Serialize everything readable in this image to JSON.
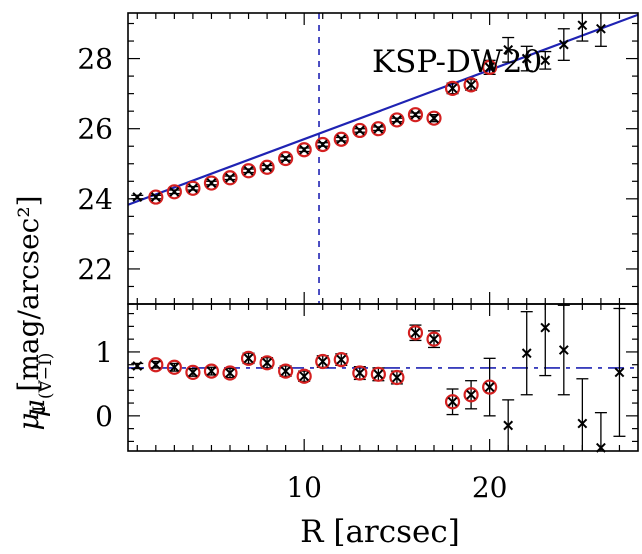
{
  "chart_data": [
    {
      "panel": "top",
      "type": "scatter",
      "title": "KSP-DW20",
      "ylabel_main": "[mag/arcsec²]",
      "ylabel_sym": "μ",
      "ylabel_sub": "I",
      "xlim": [
        0.5,
        28.0
      ],
      "ylim": [
        29.3,
        21.0
      ],
      "y_inverted": true,
      "yticks": [
        22,
        24,
        26,
        28
      ],
      "ytick_labels": [
        "22",
        "24",
        "26",
        "28"
      ],
      "x": [
        1,
        2,
        3,
        4,
        5,
        6,
        7,
        8,
        9,
        10,
        11,
        12,
        13,
        14,
        15,
        16,
        17,
        18,
        19,
        20,
        21,
        22,
        23,
        24,
        25,
        26
      ],
      "y": [
        24.05,
        24.05,
        24.2,
        24.3,
        24.45,
        24.6,
        24.8,
        24.9,
        25.15,
        25.4,
        25.55,
        25.7,
        25.95,
        26.0,
        26.25,
        26.4,
        26.3,
        27.15,
        27.25,
        27.75,
        28.25,
        28.0,
        27.95,
        28.4,
        28.95,
        28.85
      ],
      "yerr": [
        0.05,
        0.05,
        0.05,
        0.05,
        0.05,
        0.05,
        0.05,
        0.05,
        0.05,
        0.05,
        0.05,
        0.05,
        0.05,
        0.05,
        0.05,
        0.05,
        0.1,
        0.15,
        0.15,
        0.2,
        0.35,
        0.35,
        0.25,
        0.45,
        0.45,
        0.5
      ],
      "circled": [
        false,
        true,
        true,
        true,
        true,
        true,
        true,
        true,
        true,
        true,
        true,
        true,
        true,
        true,
        true,
        true,
        true,
        true,
        true,
        true,
        false,
        false,
        false,
        false,
        false,
        false
      ],
      "fit_line": {
        "x": [
          0.5,
          28.0
        ],
        "y": [
          23.83,
          29.25
        ]
      },
      "vline_x": 10.8
    },
    {
      "panel": "bottom",
      "type": "scatter",
      "ylabel_sym": "μ",
      "ylabel_sub": "(V−I)",
      "xlabel": "R [arcsec]",
      "xlim": [
        0.5,
        28.0
      ],
      "ylim": [
        -0.55,
        1.75
      ],
      "xticks": [
        10,
        20
      ],
      "xtick_labels": [
        "10",
        "20"
      ],
      "yticks": [
        0,
        1
      ],
      "ytick_labels": [
        "0",
        "1"
      ],
      "x": [
        1,
        2,
        3,
        4,
        5,
        6,
        7,
        8,
        9,
        10,
        11,
        12,
        13,
        14,
        15,
        16,
        17,
        18,
        19,
        20,
        21,
        22,
        23,
        24,
        25,
        26,
        27
      ],
      "y": [
        0.78,
        0.8,
        0.76,
        0.68,
        0.7,
        0.67,
        0.9,
        0.83,
        0.7,
        0.62,
        0.85,
        0.88,
        0.67,
        0.65,
        0.6,
        1.3,
        1.2,
        0.22,
        0.33,
        0.45,
        -0.15,
        0.98,
        1.38,
        1.03,
        -0.12,
        -0.5,
        0.68
      ],
      "yerr": [
        0.04,
        0.05,
        0.06,
        0.06,
        0.06,
        0.07,
        0.08,
        0.08,
        0.08,
        0.08,
        0.09,
        0.09,
        0.1,
        0.1,
        0.1,
        0.12,
        0.13,
        0.2,
        0.22,
        0.45,
        0.4,
        0.65,
        0.75,
        0.7,
        0.7,
        0.55,
        1.0
      ],
      "circled": [
        false,
        true,
        true,
        true,
        true,
        true,
        true,
        true,
        true,
        true,
        true,
        true,
        true,
        true,
        true,
        true,
        true,
        true,
        true,
        true,
        false,
        false,
        false,
        false,
        false,
        false,
        false
      ],
      "hline_y": 0.75
    }
  ],
  "colors": {
    "fit_line": "#1f23b3",
    "ref_line": "#1f23b3",
    "circle": "#d42020",
    "marker": "#000000"
  }
}
